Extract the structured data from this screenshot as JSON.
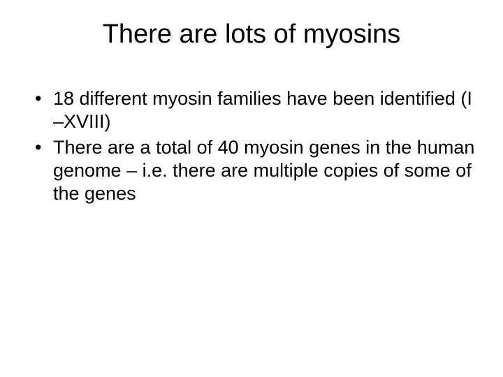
{
  "slide": {
    "title": "There are lots of myosins",
    "bullets": [
      "18 different myosin families have been identified (I –XVIII)",
      "There are a total of 40 myosin genes in the human genome – i.e. there are multiple copies of some of the genes"
    ]
  }
}
